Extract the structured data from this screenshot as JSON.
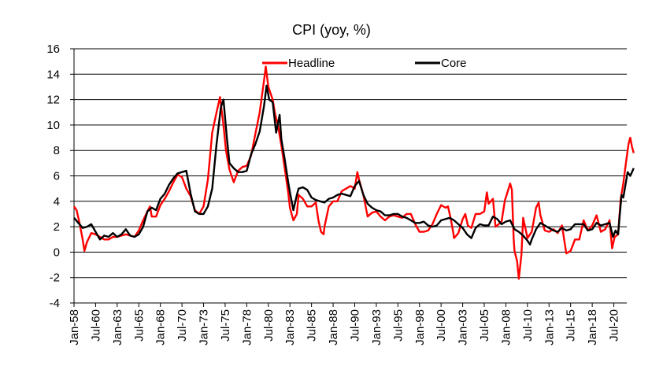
{
  "chart_data": {
    "type": "line",
    "title": "CPI (yoy, %)",
    "ylim": [
      -4,
      16
    ],
    "yticks": [
      -4,
      -2,
      0,
      2,
      4,
      6,
      8,
      10,
      12,
      14,
      16
    ],
    "grid": "horizontal",
    "legend_position": "top",
    "x_range": [
      1958.0,
      2022.0
    ],
    "xtick_labels": [
      "Jan-58",
      "Jul-60",
      "Jan-63",
      "Jul-65",
      "Jan-68",
      "Jul-70",
      "Jan-73",
      "Jul-75",
      "Jan-78",
      "Jul-80",
      "Jan-83",
      "Jul-85",
      "Jan-88",
      "Jul-90",
      "Jan-93",
      "Jul-95",
      "Jan-98",
      "Jul-00",
      "Jan-03",
      "Jul-05",
      "Jan-08",
      "Jul-10",
      "Jan-13",
      "Jul-15",
      "Jan-18",
      "Jul-20"
    ],
    "xtick_positions": [
      1958.0,
      1960.5,
      1963.0,
      1965.5,
      1968.0,
      1970.5,
      1973.0,
      1975.5,
      1978.0,
      1980.5,
      1983.0,
      1985.5,
      1988.0,
      1990.5,
      1993.0,
      1995.5,
      1998.0,
      2000.5,
      2003.0,
      2005.5,
      2008.0,
      2010.5,
      2013.0,
      2015.5,
      2018.0,
      2020.5
    ],
    "series": [
      {
        "name": "Headline",
        "color": "#ff0000",
        "points": [
          [
            1958.0,
            3.6
          ],
          [
            1958.3,
            3.3
          ],
          [
            1958.6,
            2.4
          ],
          [
            1959.0,
            1.0
          ],
          [
            1959.2,
            0.1
          ],
          [
            1959.5,
            0.8
          ],
          [
            1960.0,
            1.5
          ],
          [
            1960.5,
            1.4
          ],
          [
            1961.0,
            1.2
          ],
          [
            1961.5,
            1.0
          ],
          [
            1962.0,
            1.0
          ],
          [
            1962.5,
            1.2
          ],
          [
            1963.0,
            1.2
          ],
          [
            1963.5,
            1.3
          ],
          [
            1964.0,
            1.4
          ],
          [
            1964.5,
            1.3
          ],
          [
            1965.0,
            1.2
          ],
          [
            1965.5,
            1.7
          ],
          [
            1966.0,
            2.5
          ],
          [
            1966.5,
            3.2
          ],
          [
            1966.8,
            3.6
          ],
          [
            1967.0,
            2.8
          ],
          [
            1967.5,
            2.8
          ],
          [
            1968.0,
            3.7
          ],
          [
            1968.5,
            4.2
          ],
          [
            1969.0,
            4.8
          ],
          [
            1969.5,
            5.5
          ],
          [
            1970.0,
            6.1
          ],
          [
            1970.5,
            5.9
          ],
          [
            1971.0,
            5.0
          ],
          [
            1971.5,
            4.4
          ],
          [
            1972.0,
            3.3
          ],
          [
            1972.5,
            3.0
          ],
          [
            1973.0,
            3.6
          ],
          [
            1973.5,
            5.7
          ],
          [
            1974.0,
            9.4
          ],
          [
            1974.5,
            11.0
          ],
          [
            1974.9,
            12.2
          ],
          [
            1975.3,
            10.0
          ],
          [
            1975.6,
            8.0
          ],
          [
            1976.0,
            6.5
          ],
          [
            1976.5,
            5.5
          ],
          [
            1977.0,
            6.4
          ],
          [
            1977.5,
            6.7
          ],
          [
            1978.0,
            6.8
          ],
          [
            1978.5,
            7.6
          ],
          [
            1979.0,
            9.3
          ],
          [
            1979.5,
            11.0
          ],
          [
            1980.0,
            13.5
          ],
          [
            1980.2,
            14.6
          ],
          [
            1980.5,
            13.0
          ],
          [
            1981.0,
            12.0
          ],
          [
            1981.3,
            10.8
          ],
          [
            1981.6,
            10.0
          ],
          [
            1982.0,
            8.4
          ],
          [
            1982.4,
            6.6
          ],
          [
            1982.8,
            4.7
          ],
          [
            1983.0,
            3.5
          ],
          [
            1983.4,
            2.5
          ],
          [
            1983.8,
            3.0
          ],
          [
            1984.0,
            4.5
          ],
          [
            1984.5,
            4.2
          ],
          [
            1985.0,
            3.6
          ],
          [
            1985.5,
            3.6
          ],
          [
            1986.0,
            3.9
          ],
          [
            1986.3,
            2.5
          ],
          [
            1986.6,
            1.6
          ],
          [
            1986.9,
            1.4
          ],
          [
            1987.0,
            2.0
          ],
          [
            1987.5,
            3.6
          ],
          [
            1988.0,
            4.0
          ],
          [
            1988.5,
            4.0
          ],
          [
            1989.0,
            4.8
          ],
          [
            1989.5,
            5.0
          ],
          [
            1990.0,
            5.2
          ],
          [
            1990.5,
            5.0
          ],
          [
            1990.8,
            6.3
          ],
          [
            1991.0,
            5.7
          ],
          [
            1991.5,
            4.5
          ],
          [
            1992.0,
            2.8
          ],
          [
            1992.5,
            3.1
          ],
          [
            1993.0,
            3.2
          ],
          [
            1993.5,
            2.8
          ],
          [
            1994.0,
            2.5
          ],
          [
            1994.5,
            2.8
          ],
          [
            1995.0,
            2.9
          ],
          [
            1995.5,
            2.8
          ],
          [
            1996.0,
            2.7
          ],
          [
            1996.5,
            3.0
          ],
          [
            1997.0,
            3.0
          ],
          [
            1997.5,
            2.2
          ],
          [
            1998.0,
            1.6
          ],
          [
            1998.5,
            1.6
          ],
          [
            1999.0,
            1.7
          ],
          [
            1999.5,
            2.2
          ],
          [
            2000.0,
            3.0
          ],
          [
            2000.5,
            3.7
          ],
          [
            2001.0,
            3.5
          ],
          [
            2001.3,
            3.6
          ],
          [
            2001.6,
            2.7
          ],
          [
            2001.9,
            1.6
          ],
          [
            2002.0,
            1.1
          ],
          [
            2002.5,
            1.5
          ],
          [
            2003.0,
            2.6
          ],
          [
            2003.3,
            3.0
          ],
          [
            2003.6,
            2.1
          ],
          [
            2004.0,
            1.9
          ],
          [
            2004.5,
            3.0
          ],
          [
            2005.0,
            3.0
          ],
          [
            2005.5,
            3.2
          ],
          [
            2005.8,
            4.7
          ],
          [
            2006.0,
            3.8
          ],
          [
            2006.5,
            4.2
          ],
          [
            2006.8,
            2.0
          ],
          [
            2007.0,
            2.1
          ],
          [
            2007.5,
            2.4
          ],
          [
            2007.9,
            4.1
          ],
          [
            2008.0,
            4.3
          ],
          [
            2008.5,
            5.4
          ],
          [
            2008.7,
            4.9
          ],
          [
            2008.9,
            1.1
          ],
          [
            2009.0,
            0.1
          ],
          [
            2009.3,
            -0.7
          ],
          [
            2009.5,
            -2.1
          ],
          [
            2009.8,
            -0.2
          ],
          [
            2010.0,
            2.7
          ],
          [
            2010.5,
            1.1
          ],
          [
            2011.0,
            1.6
          ],
          [
            2011.5,
            3.5
          ],
          [
            2011.8,
            3.9
          ],
          [
            2012.0,
            2.9
          ],
          [
            2012.5,
            1.7
          ],
          [
            2013.0,
            1.6
          ],
          [
            2013.5,
            1.8
          ],
          [
            2014.0,
            1.5
          ],
          [
            2014.5,
            2.1
          ],
          [
            2015.0,
            -0.1
          ],
          [
            2015.5,
            0.1
          ],
          [
            2016.0,
            1.0
          ],
          [
            2016.5,
            1.0
          ],
          [
            2017.0,
            2.5
          ],
          [
            2017.5,
            1.7
          ],
          [
            2018.0,
            2.1
          ],
          [
            2018.5,
            2.9
          ],
          [
            2019.0,
            1.6
          ],
          [
            2019.5,
            1.8
          ],
          [
            2020.0,
            2.5
          ],
          [
            2020.3,
            0.3
          ],
          [
            2020.6,
            1.2
          ],
          [
            2021.0,
            1.4
          ],
          [
            2021.3,
            4.2
          ],
          [
            2021.6,
            5.4
          ],
          [
            2021.9,
            7.0
          ],
          [
            2022.0,
            7.5
          ],
          [
            2022.2,
            8.5
          ],
          [
            2022.4,
            9.0
          ],
          [
            2022.6,
            8.3
          ],
          [
            2022.8,
            7.8
          ]
        ]
      },
      {
        "name": "Core",
        "color": "#000000",
        "points": [
          [
            1958.0,
            2.7
          ],
          [
            1958.5,
            2.3
          ],
          [
            1959.0,
            1.9
          ],
          [
            1959.5,
            2.0
          ],
          [
            1960.0,
            2.2
          ],
          [
            1960.5,
            1.6
          ],
          [
            1961.0,
            1.0
          ],
          [
            1961.5,
            1.3
          ],
          [
            1962.0,
            1.2
          ],
          [
            1962.5,
            1.5
          ],
          [
            1963.0,
            1.2
          ],
          [
            1963.5,
            1.4
          ],
          [
            1964.0,
            1.8
          ],
          [
            1964.5,
            1.3
          ],
          [
            1965.0,
            1.2
          ],
          [
            1965.5,
            1.4
          ],
          [
            1966.0,
            2.0
          ],
          [
            1966.5,
            3.2
          ],
          [
            1967.0,
            3.5
          ],
          [
            1967.5,
            3.3
          ],
          [
            1968.0,
            4.2
          ],
          [
            1968.5,
            4.6
          ],
          [
            1969.0,
            5.3
          ],
          [
            1969.5,
            5.8
          ],
          [
            1970.0,
            6.2
          ],
          [
            1970.5,
            6.3
          ],
          [
            1971.0,
            6.4
          ],
          [
            1971.5,
            4.6
          ],
          [
            1972.0,
            3.2
          ],
          [
            1972.5,
            3.0
          ],
          [
            1973.0,
            3.0
          ],
          [
            1973.5,
            3.6
          ],
          [
            1974.0,
            5.0
          ],
          [
            1974.5,
            8.5
          ],
          [
            1975.0,
            11.4
          ],
          [
            1975.3,
            12.0
          ],
          [
            1975.7,
            9.0
          ],
          [
            1976.0,
            7.0
          ],
          [
            1976.5,
            6.6
          ],
          [
            1977.0,
            6.3
          ],
          [
            1977.5,
            6.3
          ],
          [
            1978.0,
            6.4
          ],
          [
            1978.5,
            7.7
          ],
          [
            1979.0,
            8.5
          ],
          [
            1979.5,
            9.5
          ],
          [
            1980.0,
            11.5
          ],
          [
            1980.3,
            13.1
          ],
          [
            1980.6,
            12.0
          ],
          [
            1981.0,
            11.8
          ],
          [
            1981.4,
            9.4
          ],
          [
            1981.8,
            10.8
          ],
          [
            1982.0,
            8.9
          ],
          [
            1982.4,
            7.3
          ],
          [
            1982.8,
            5.5
          ],
          [
            1983.0,
            4.7
          ],
          [
            1983.4,
            3.3
          ],
          [
            1983.8,
            4.5
          ],
          [
            1984.0,
            5.0
          ],
          [
            1984.5,
            5.1
          ],
          [
            1985.0,
            4.9
          ],
          [
            1985.5,
            4.3
          ],
          [
            1986.0,
            4.1
          ],
          [
            1986.5,
            4.0
          ],
          [
            1987.0,
            3.9
          ],
          [
            1987.5,
            4.2
          ],
          [
            1988.0,
            4.3
          ],
          [
            1988.5,
            4.5
          ],
          [
            1989.0,
            4.6
          ],
          [
            1989.5,
            4.5
          ],
          [
            1990.0,
            4.4
          ],
          [
            1990.5,
            5.2
          ],
          [
            1991.0,
            5.6
          ],
          [
            1991.5,
            4.5
          ],
          [
            1992.0,
            3.8
          ],
          [
            1992.5,
            3.5
          ],
          [
            1993.0,
            3.3
          ],
          [
            1993.5,
            3.2
          ],
          [
            1994.0,
            2.9
          ],
          [
            1994.5,
            2.9
          ],
          [
            1995.0,
            3.0
          ],
          [
            1995.5,
            3.0
          ],
          [
            1996.0,
            2.8
          ],
          [
            1996.5,
            2.7
          ],
          [
            1997.0,
            2.5
          ],
          [
            1997.5,
            2.3
          ],
          [
            1998.0,
            2.3
          ],
          [
            1998.5,
            2.4
          ],
          [
            1999.0,
            2.1
          ],
          [
            1999.5,
            2.0
          ],
          [
            2000.0,
            2.1
          ],
          [
            2000.5,
            2.5
          ],
          [
            2001.0,
            2.6
          ],
          [
            2001.5,
            2.7
          ],
          [
            2002.0,
            2.5
          ],
          [
            2002.5,
            2.2
          ],
          [
            2003.0,
            1.9
          ],
          [
            2003.5,
            1.4
          ],
          [
            2004.0,
            1.1
          ],
          [
            2004.5,
            1.9
          ],
          [
            2005.0,
            2.2
          ],
          [
            2005.5,
            2.1
          ],
          [
            2006.0,
            2.1
          ],
          [
            2006.5,
            2.8
          ],
          [
            2007.0,
            2.6
          ],
          [
            2007.5,
            2.2
          ],
          [
            2008.0,
            2.4
          ],
          [
            2008.5,
            2.5
          ],
          [
            2009.0,
            1.8
          ],
          [
            2009.5,
            1.6
          ],
          [
            2010.0,
            1.3
          ],
          [
            2010.5,
            0.9
          ],
          [
            2010.8,
            0.6
          ],
          [
            2011.0,
            1.0
          ],
          [
            2011.5,
            1.8
          ],
          [
            2012.0,
            2.3
          ],
          [
            2012.5,
            2.1
          ],
          [
            2013.0,
            1.9
          ],
          [
            2013.5,
            1.7
          ],
          [
            2014.0,
            1.6
          ],
          [
            2014.5,
            1.9
          ],
          [
            2015.0,
            1.7
          ],
          [
            2015.5,
            1.8
          ],
          [
            2016.0,
            2.2
          ],
          [
            2016.5,
            2.2
          ],
          [
            2017.0,
            2.2
          ],
          [
            2017.5,
            1.7
          ],
          [
            2018.0,
            1.8
          ],
          [
            2018.5,
            2.3
          ],
          [
            2019.0,
            2.1
          ],
          [
            2019.5,
            2.2
          ],
          [
            2020.0,
            2.3
          ],
          [
            2020.4,
            1.2
          ],
          [
            2020.7,
            1.7
          ],
          [
            2021.0,
            1.4
          ],
          [
            2021.2,
            3.0
          ],
          [
            2021.4,
            4.5
          ],
          [
            2021.6,
            4.3
          ],
          [
            2021.9,
            5.5
          ],
          [
            2022.1,
            6.3
          ],
          [
            2022.4,
            6.0
          ],
          [
            2022.6,
            6.3
          ],
          [
            2022.8,
            6.6
          ]
        ]
      }
    ]
  }
}
